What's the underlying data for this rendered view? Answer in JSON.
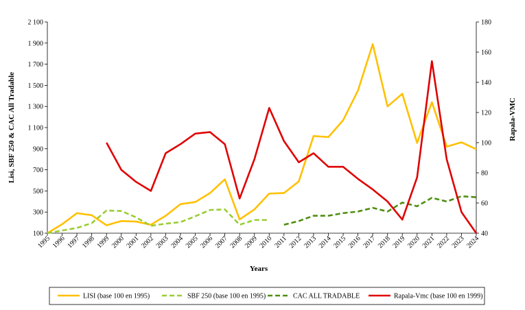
{
  "chart_data": {
    "type": "line",
    "xlabel": "Years",
    "ylabel_left": "Lisi, SBF 250 & CAC All Tradable",
    "ylabel_right": "Rapala-VMC",
    "x": [
      "1995",
      "1996",
      "1997",
      "1998",
      "1999",
      "2000",
      "2001",
      "2002",
      "2003",
      "2004",
      "2005",
      "2006",
      "2007",
      "2008",
      "2009",
      "2010",
      "2011",
      "2012",
      "2013",
      "2014",
      "2015",
      "2016",
      "2017",
      "2018",
      "2019",
      "2020",
      "2021",
      "2022",
      "2023",
      "2024"
    ],
    "y_left": {
      "min": 100,
      "max": 2100,
      "ticks": [
        "100",
        "300",
        "500",
        "700",
        "900",
        "1 100",
        "1 300",
        "1 500",
        "1 700",
        "1 900",
        "2 100"
      ]
    },
    "y_right": {
      "min": 40,
      "max": 180,
      "ticks": [
        "40",
        "60",
        "80",
        "100",
        "120",
        "140",
        "160",
        "180"
      ]
    },
    "legend_position": "bottom",
    "series": [
      {
        "name": "LISI (base 100 en 1995)",
        "axis": "left",
        "color": "#FFC000",
        "style": "solid",
        "values": [
          100,
          185,
          290,
          270,
          175,
          215,
          210,
          180,
          265,
          375,
          395,
          480,
          610,
          230,
          325,
          475,
          480,
          590,
          1020,
          1010,
          1170,
          1450,
          1890,
          1300,
          1420,
          955,
          1340,
          920,
          960,
          895
        ]
      },
      {
        "name": "SBF 250 (base 100 en 1995)",
        "axis": "left",
        "color": "#9ACD32",
        "style": "dashed",
        "values": [
          100,
          125,
          150,
          195,
          315,
          310,
          250,
          170,
          190,
          205,
          260,
          320,
          325,
          180,
          225,
          225,
          null,
          null,
          null,
          null,
          null,
          null,
          null,
          null,
          null,
          null,
          null,
          null,
          null,
          null
        ]
      },
      {
        "name": "CAC ALL TRADABLE",
        "axis": "left",
        "color": "#4E8F0F",
        "style": "dashed",
        "values": [
          null,
          null,
          null,
          null,
          null,
          null,
          null,
          null,
          null,
          null,
          null,
          null,
          null,
          null,
          null,
          null,
          180,
          215,
          265,
          265,
          290,
          305,
          340,
          305,
          390,
          355,
          435,
          400,
          450,
          440
        ]
      },
      {
        "name": "Rapala-Vmc (base 100 en 1999)",
        "axis": "right",
        "color": "#E00000",
        "style": "solid",
        "values": [
          null,
          null,
          null,
          null,
          100,
          82,
          74,
          68,
          93,
          99,
          106,
          107,
          99,
          63,
          89,
          123,
          101,
          87,
          93,
          84,
          84,
          76,
          69,
          61,
          49,
          77,
          154,
          89,
          54,
          40
        ]
      }
    ]
  }
}
